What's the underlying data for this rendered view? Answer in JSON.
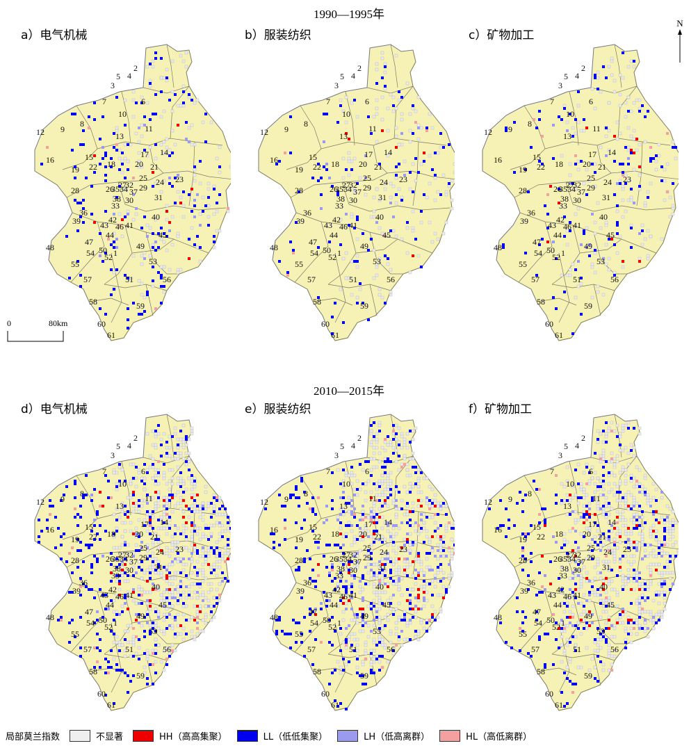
{
  "periods": [
    "1990—1995年",
    "2010—2015年"
  ],
  "panels": [
    {
      "label": "a）电气机械",
      "density": {
        "hh": 10,
        "ll": 150,
        "lh": 22,
        "hl": 8,
        "ns": 150
      }
    },
    {
      "label": "b）服装纺织",
      "density": {
        "hh": 6,
        "ll": 90,
        "lh": 14,
        "hl": 6,
        "ns": 150
      }
    },
    {
      "label": "c）矿物加工",
      "density": {
        "hh": 12,
        "ll": 100,
        "lh": 16,
        "hl": 8,
        "ns": 150
      }
    },
    {
      "label": "d）电气机械",
      "density": {
        "hh": 40,
        "ll": 320,
        "lh": 60,
        "hl": 30,
        "ns": 600
      }
    },
    {
      "label": "e）服装纺织",
      "density": {
        "hh": 40,
        "ll": 300,
        "lh": 120,
        "hl": 30,
        "ns": 600
      }
    },
    {
      "label": "f）矿物加工",
      "density": {
        "hh": 40,
        "ll": 230,
        "lh": 70,
        "hl": 30,
        "ns": 600
      }
    }
  ],
  "region_numbers": [
    "1",
    "2",
    "3",
    "4",
    "5",
    "6",
    "7",
    "8",
    "9",
    "10",
    "11",
    "12",
    "13",
    "14",
    "15",
    "16",
    "17",
    "18",
    "19",
    "20",
    "21",
    "22",
    "23",
    "24",
    "25",
    "26",
    "27",
    "28",
    "29",
    "30",
    "31",
    "32",
    "33",
    "34",
    "35",
    "36",
    "37",
    "38",
    "39",
    "40",
    "41",
    "42",
    "43",
    "44",
    "45",
    "46",
    "47",
    "48",
    "49",
    "50",
    "51",
    "52",
    "53",
    "54",
    "55",
    "56",
    "57",
    "58",
    "59",
    "60",
    "61"
  ],
  "north_label": "N",
  "scale": {
    "start": "0",
    "end": "80km"
  },
  "legend": {
    "title": "局部莫兰指数",
    "items": [
      {
        "label": "不显著",
        "color": "#efefef"
      },
      {
        "label": "HH（高高集聚）",
        "color": "#ee0000"
      },
      {
        "label": "LL（低低集聚）",
        "color": "#0000ee"
      },
      {
        "label": "LH（低高离群）",
        "color": "#9a9aee"
      },
      {
        "label": "HL（高低离群）",
        "color": "#f4a0a0"
      }
    ]
  },
  "colors": {
    "base": "#f6f1b4",
    "border": "#7a7a6a"
  }
}
